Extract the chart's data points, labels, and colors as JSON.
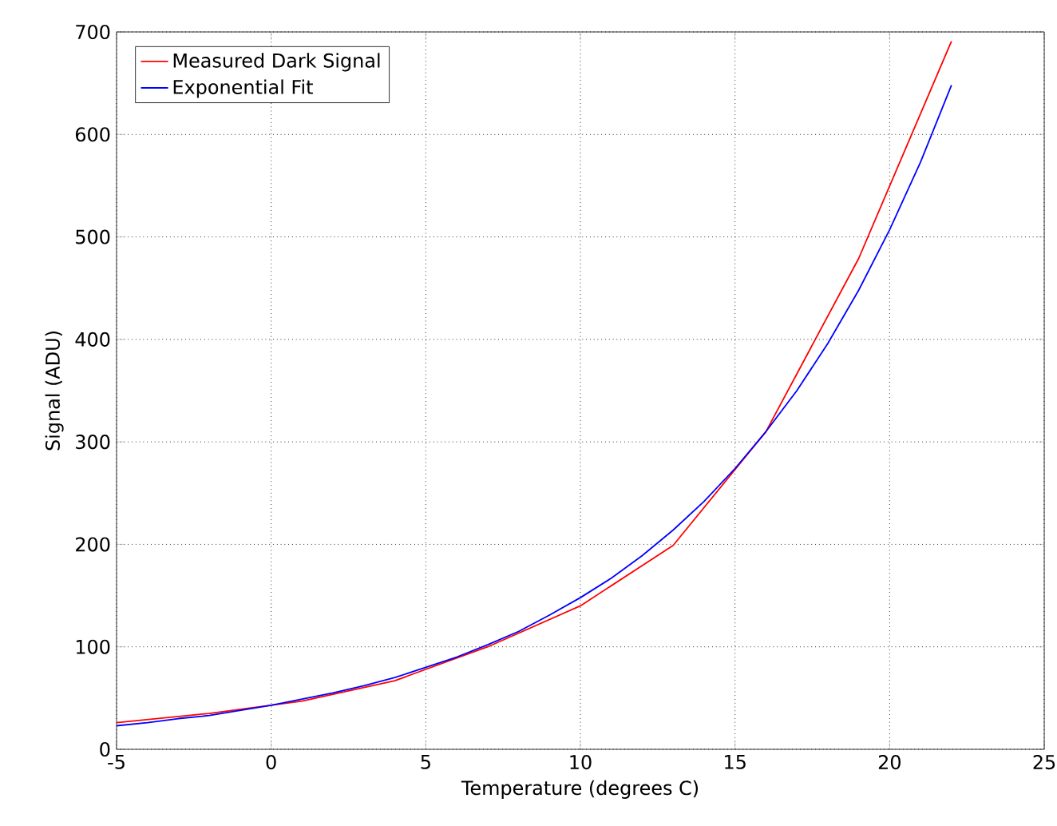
{
  "chart_data": {
    "type": "line",
    "xlabel": "Temperature (degrees C)",
    "ylabel": "Signal (ADU)",
    "xlim": [
      -5,
      25
    ],
    "xticks": [
      -5,
      0,
      5,
      10,
      15,
      20,
      25
    ],
    "ylim": [
      0,
      700
    ],
    "yticks": [
      0,
      100,
      200,
      300,
      400,
      500,
      600,
      700
    ],
    "grid": true,
    "legend": "top left",
    "marker": "none",
    "line_style": "solid",
    "series": [
      {
        "name": "Measured Dark Signal",
        "color": "#ff0000",
        "x": [
          -5,
          -2,
          1,
          4,
          7,
          10,
          13,
          16,
          19,
          22
        ],
        "values": [
          26,
          35,
          47,
          67,
          100,
          140,
          199,
          310,
          479,
          691
        ]
      },
      {
        "name": "Exponential Fit",
        "color": "#0000ff",
        "x": [
          -5,
          -4,
          -3,
          -2,
          -1,
          0,
          1,
          2,
          3,
          4,
          5,
          6,
          7,
          8,
          9,
          10,
          11,
          12,
          13,
          14,
          15,
          16,
          17,
          18,
          19,
          20,
          21,
          22
        ],
        "values": [
          23,
          26,
          30,
          33,
          38,
          43,
          49,
          55,
          62,
          70,
          80,
          90,
          102,
          115,
          131,
          148,
          167,
          189,
          214,
          242,
          274,
          310,
          350,
          396,
          448,
          507,
          573,
          648
        ]
      }
    ]
  }
}
